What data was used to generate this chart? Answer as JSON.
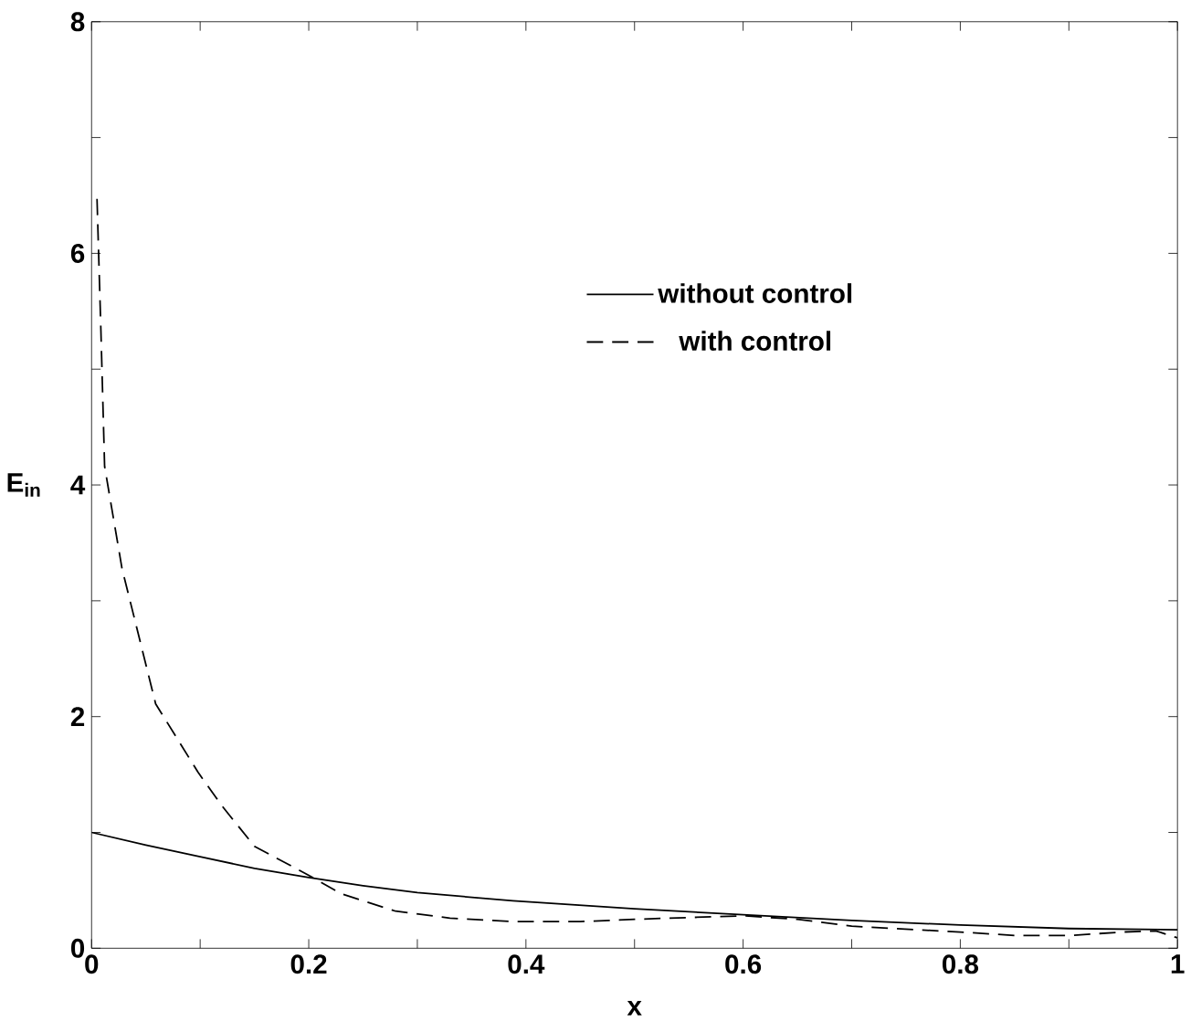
{
  "chart_data": {
    "type": "line",
    "xlabel": "x",
    "ylabel": "E$_{in}$",
    "xlim": [
      0,
      1
    ],
    "ylim": [
      0,
      8
    ],
    "xticks": [
      0,
      {
        "value": 0.1,
        "label": null
      },
      0.2,
      {
        "value": 0.3,
        "label": null
      },
      0.4,
      {
        "value": 0.5,
        "label": null
      },
      0.6,
      {
        "value": 0.7,
        "label": null
      },
      0.8,
      {
        "value": 0.9,
        "label": null
      },
      1
    ],
    "yticks": [
      0,
      {
        "value": 1,
        "label": null
      },
      2,
      {
        "value": 3,
        "label": null
      },
      4,
      {
        "value": 5,
        "label": null
      },
      6,
      {
        "value": 7,
        "label": null
      },
      8
    ],
    "legend": "right",
    "grid": false,
    "marker": "none",
    "series": [
      {
        "name": "without control",
        "color": "#000000",
        "line_style": "solid",
        "x": [
          0,
          0.05,
          0.1,
          0.15,
          0.2,
          0.25,
          0.3,
          0.388,
          0.5,
          0.6,
          0.7,
          0.8,
          0.9,
          1.0
        ],
        "values": [
          1.0,
          0.89,
          0.79,
          0.69,
          0.61,
          0.54,
          0.48,
          0.41,
          0.34,
          0.29,
          0.24,
          0.2,
          0.17,
          0.16
        ]
      },
      {
        "name": "with control",
        "color": "#000000",
        "line_style": "dashed",
        "x": [
          0.005,
          0.0086,
          0.012,
          0.028,
          0.059,
          0.098,
          0.12,
          0.15,
          0.2,
          0.23,
          0.28,
          0.33,
          0.388,
          0.45,
          0.5,
          0.6,
          0.65,
          0.7,
          0.8,
          0.85,
          0.9,
          0.95,
          0.98,
          1.0
        ],
        "values": [
          6.47,
          5.33,
          4.16,
          3.28,
          2.11,
          1.52,
          1.23,
          0.88,
          0.63,
          0.47,
          0.32,
          0.26,
          0.23,
          0.23,
          0.25,
          0.28,
          0.25,
          0.19,
          0.14,
          0.11,
          0.11,
          0.14,
          0.15,
          0.09
        ]
      }
    ]
  }
}
